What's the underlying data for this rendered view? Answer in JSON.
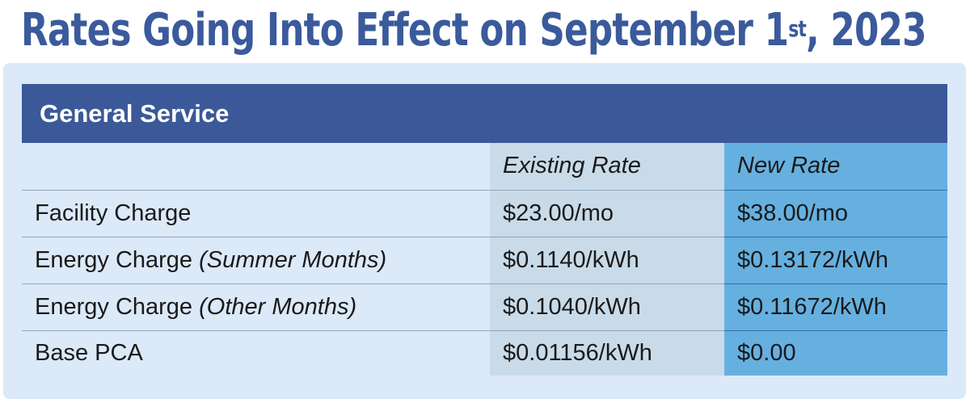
{
  "title": {
    "main": "Rates Going Into Effect on September 1",
    "sup": "st",
    "tail": ", 2023"
  },
  "table": {
    "section": "General Service",
    "columns": {
      "label": "",
      "existing": "Existing Rate",
      "new": "New Rate"
    },
    "rows": [
      {
        "label": "Facility Charge",
        "qualifier": "",
        "existing": "$23.00/mo",
        "new": "$38.00/mo"
      },
      {
        "label": "Energy Charge ",
        "qualifier": "(Summer Months)",
        "existing": "$0.1140/kWh",
        "new": "$0.13172/kWh"
      },
      {
        "label": "Energy Charge ",
        "qualifier": "(Other Months)",
        "existing": "$0.1040/kWh",
        "new": "$0.11672/kWh"
      },
      {
        "label": "Base PCA",
        "qualifier": "",
        "existing": "$0.01156/kWh",
        "new": "$0.00"
      }
    ]
  },
  "colors": {
    "title": "#3a5a9c",
    "header_bar": "#3b5998",
    "panel": "#dce9f8",
    "existing_col": "#c9dbe9",
    "new_col": "#66b0e0"
  }
}
